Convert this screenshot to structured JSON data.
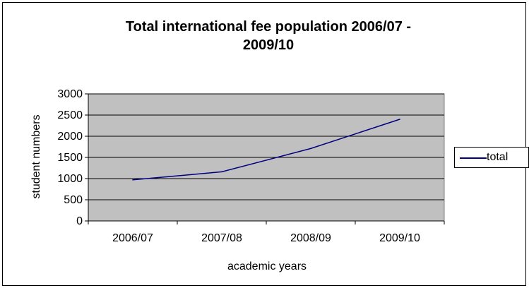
{
  "chart_data": {
    "type": "line",
    "title": "Total international fee population  2006/07 -\n2009/10",
    "xlabel": "academic years",
    "ylabel": "student numbers",
    "categories": [
      "2006/07",
      "2007/08",
      "2008/09",
      "2009/10"
    ],
    "series": [
      {
        "name": "total",
        "values": [
          970,
          1160,
          1710,
          2400
        ],
        "color": "#000080"
      }
    ],
    "ylim": [
      0,
      3000
    ],
    "yticks": [
      0,
      500,
      1000,
      1500,
      2000,
      2500,
      3000
    ],
    "plot_background": "#c0c0c0",
    "grid": true,
    "legend_position": "right"
  }
}
